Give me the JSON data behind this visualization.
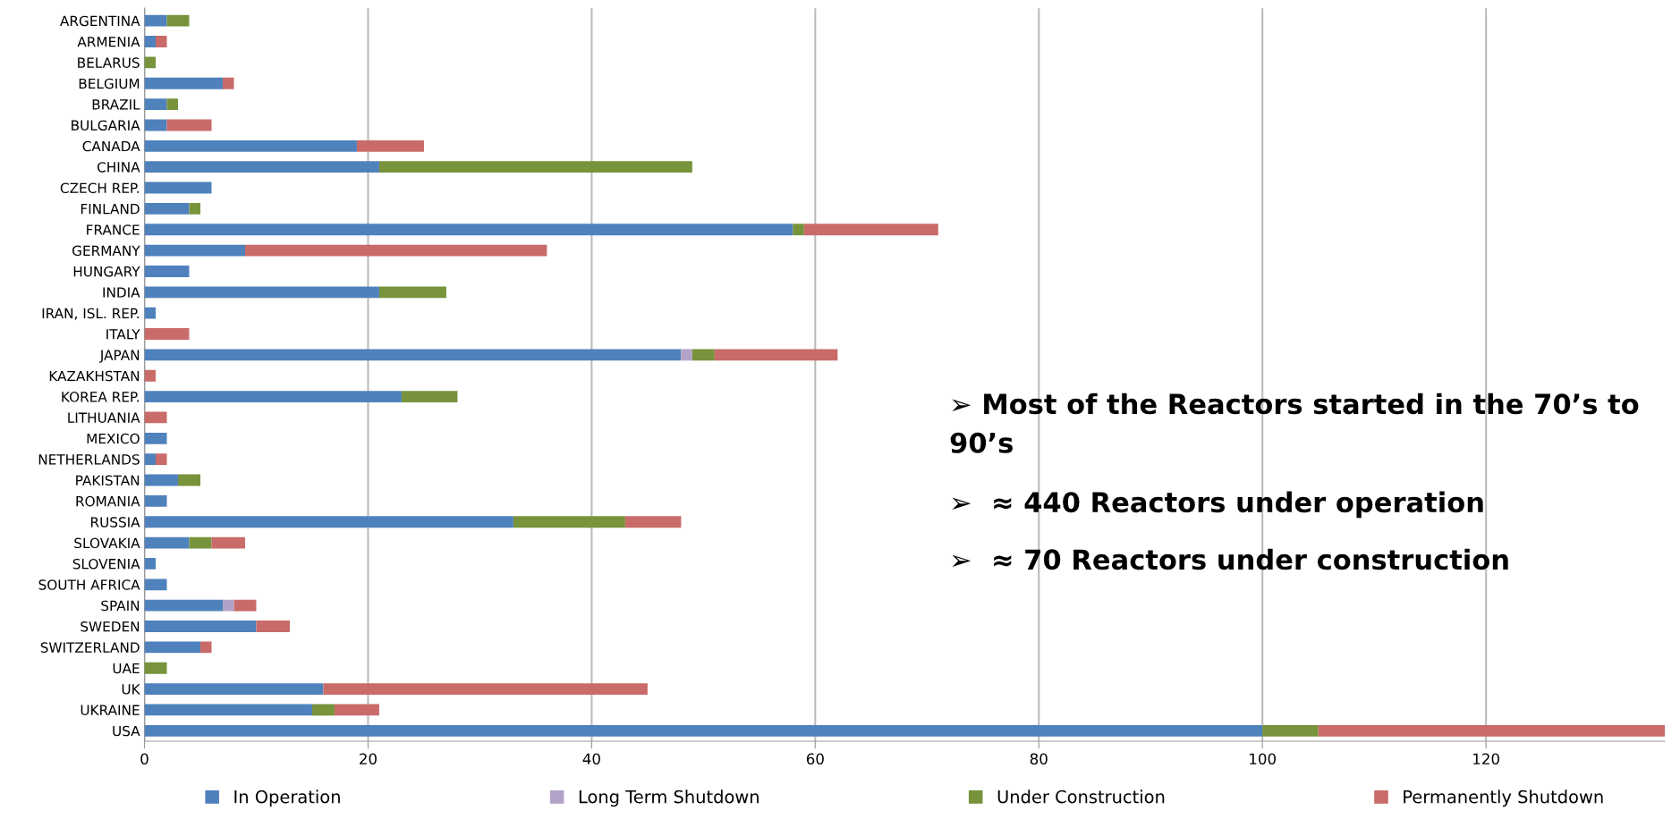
{
  "chart_data": {
    "type": "bar",
    "orientation": "horizontal",
    "stacked": true,
    "categories": [
      "ARGENTINA",
      "ARMENIA",
      "BELARUS",
      "BELGIUM",
      "BRAZIL",
      "BULGARIA",
      "CANADA",
      "CHINA",
      "CZECH REP.",
      "FINLAND",
      "FRANCE",
      "GERMANY",
      "HUNGARY",
      "INDIA",
      "IRAN, ISL. REP.",
      "ITALY",
      "JAPAN",
      "KAZAKHSTAN",
      "KOREA REP.",
      "LITHUANIA",
      "MEXICO",
      "NETHERLANDS",
      "PAKISTAN",
      "ROMANIA",
      "RUSSIA",
      "SLOVAKIA",
      "SLOVENIA",
      "SOUTH AFRICA",
      "SPAIN",
      "SWEDEN",
      "SWITZERLAND",
      "UAE",
      "UK",
      "UKRAINE",
      "USA"
    ],
    "series": [
      {
        "name": "In Operation",
        "color": "#4f81bd",
        "values": [
          2,
          1,
          0,
          7,
          2,
          2,
          19,
          21,
          6,
          4,
          58,
          9,
          4,
          21,
          1,
          0,
          48,
          0,
          23,
          0,
          2,
          1,
          3,
          2,
          33,
          4,
          1,
          2,
          7,
          10,
          5,
          0,
          16,
          15,
          100
        ]
      },
      {
        "name": "Long Term Shutdown",
        "color": "#b3a2c7",
        "values": [
          0,
          0,
          0,
          0,
          0,
          0,
          0,
          0,
          0,
          0,
          0,
          0,
          0,
          0,
          0,
          0,
          1,
          0,
          0,
          0,
          0,
          0,
          0,
          0,
          0,
          0,
          0,
          0,
          1,
          0,
          0,
          0,
          0,
          0,
          0
        ]
      },
      {
        "name": "Under Construction",
        "color": "#77933c",
        "values": [
          2,
          0,
          1,
          0,
          1,
          0,
          0,
          28,
          0,
          1,
          1,
          0,
          0,
          6,
          0,
          0,
          2,
          0,
          5,
          0,
          0,
          0,
          2,
          0,
          10,
          2,
          0,
          0,
          0,
          0,
          0,
          2,
          0,
          2,
          5
        ]
      },
      {
        "name": "Permanently Shutdown",
        "color": "#c96b69",
        "values": [
          0,
          1,
          0,
          1,
          0,
          4,
          6,
          0,
          0,
          0,
          12,
          27,
          0,
          0,
          0,
          4,
          11,
          1,
          0,
          2,
          0,
          1,
          0,
          0,
          5,
          3,
          0,
          0,
          2,
          3,
          1,
          0,
          29,
          4,
          31
        ]
      }
    ],
    "xlim": [
      0,
      136
    ],
    "xticks": [
      0,
      20,
      40,
      60,
      80,
      100,
      120
    ],
    "grid": "x",
    "legend": "bottom",
    "annotations": [
      "➢ Most of the Reactors started in the 70’s to 90’s",
      "➢  ≈ 440 Reactors under operation",
      "➢  ≈ 70 Reactors under construction"
    ]
  }
}
